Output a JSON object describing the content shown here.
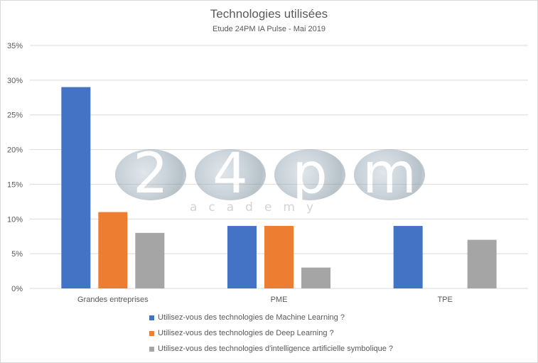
{
  "chart_data": {
    "type": "bar",
    "title": "Technologies utilisées",
    "subtitle": "Etude 24PM IA Pulse - Mai 2019",
    "categories": [
      "Grandes entreprises",
      "PME",
      "TPE"
    ],
    "series": [
      {
        "name": "Utilisez-vous des technologies de Machine Learning ?",
        "color": "#4472c4",
        "values": [
          29,
          9,
          9
        ]
      },
      {
        "name": "Utilisez-vous des technologies de Deep Learning ?",
        "color": "#ed7d31",
        "values": [
          11,
          9,
          null
        ]
      },
      {
        "name": "Utilisez-vous des technologies d'intelligence artificielle symbolique ?",
        "color": "#a5a5a5",
        "values": [
          8,
          3,
          7
        ]
      }
    ],
    "ylim": [
      0,
      35
    ],
    "yticks": [
      "0%",
      "5%",
      "10%",
      "15%",
      "20%",
      "25%",
      "30%",
      "35%"
    ],
    "grid": true,
    "legend_position": "bottom"
  },
  "watermark": {
    "letters": [
      "2",
      "4",
      "p",
      "m"
    ],
    "subtext": "academy"
  }
}
